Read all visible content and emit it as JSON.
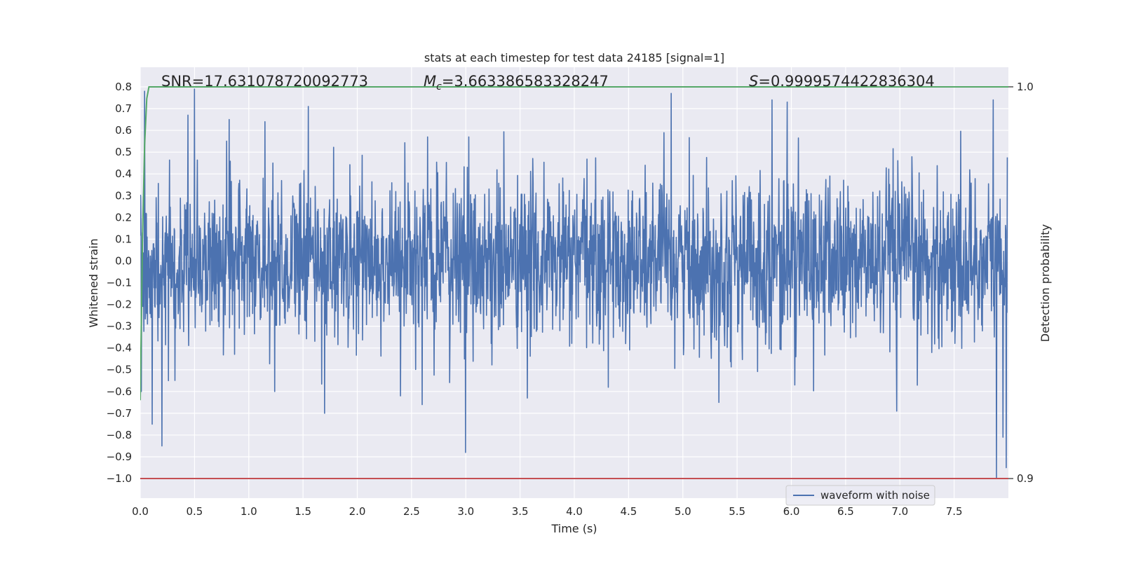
{
  "chart_data": {
    "type": "line",
    "title": "stats at each timestep for test data 24185 [signal=1]",
    "xlabel": "Time (s)",
    "ylabel": "Whitened strain",
    "y2label": "Detection probability",
    "xlim": [
      0.0,
      8.0
    ],
    "ylim": [
      -1.09,
      0.89
    ],
    "y2lim": [
      0.9,
      1.0
    ],
    "x_ticks": [
      0.0,
      0.5,
      1.0,
      1.5,
      2.0,
      2.5,
      3.0,
      3.5,
      4.0,
      4.5,
      5.0,
      5.5,
      6.0,
      6.5,
      7.0,
      7.5
    ],
    "x_tick_labels": [
      "0.0",
      "0.5",
      "1.0",
      "1.5",
      "2.0",
      "2.5",
      "3.0",
      "3.5",
      "4.0",
      "4.5",
      "5.0",
      "5.5",
      "6.0",
      "6.5",
      "7.0",
      "7.5"
    ],
    "y_ticks": [
      0.8,
      0.7,
      0.6,
      0.5,
      0.4,
      0.3,
      0.2,
      0.1,
      0.0,
      -0.1,
      -0.2,
      -0.3,
      -0.4,
      -0.5,
      -0.6,
      -0.7,
      -0.8,
      -0.9,
      -1.0
    ],
    "y_tick_labels": [
      "0.8",
      "0.7",
      "0.6",
      "0.5",
      "0.4",
      "0.3",
      "0.2",
      "0.1",
      "0.0",
      "−0.1",
      "−0.2",
      "−0.3",
      "−0.4",
      "−0.5",
      "−0.6",
      "−0.7",
      "−0.8",
      "−0.9",
      "−1.0"
    ],
    "y2_ticks": [
      1.0,
      0.9
    ],
    "y2_tick_labels": [
      "1.0",
      "0.9"
    ],
    "grid": true,
    "legend": {
      "placement": "bottom-right",
      "entries": [
        "waveform with noise"
      ]
    },
    "annotations": {
      "snr": "SNR=17.631078720092773",
      "mc_symbol": "M",
      "mc_sub": "c",
      "mc_value": "=3.663386583328247",
      "s_symbol": "S",
      "s_value": "=0.9999574422836304"
    },
    "series": [
      {
        "name": "waveform with noise",
        "color": "#4c72b0",
        "noise_std": 0.19,
        "sample_count": 2400,
        "peaks": [
          {
            "x": 0.01,
            "y": -0.6
          },
          {
            "x": 0.04,
            "y": 0.78
          },
          {
            "x": 0.11,
            "y": -0.75
          },
          {
            "x": 0.2,
            "y": -0.85
          },
          {
            "x": 0.26,
            "y": -0.55
          },
          {
            "x": 0.44,
            "y": 0.67
          },
          {
            "x": 0.5,
            "y": 0.79
          },
          {
            "x": 0.82,
            "y": 0.65
          },
          {
            "x": 1.15,
            "y": 0.64
          },
          {
            "x": 1.24,
            "y": -0.6
          },
          {
            "x": 1.55,
            "y": 0.71
          },
          {
            "x": 1.7,
            "y": -0.7
          },
          {
            "x": 2.4,
            "y": -0.62
          },
          {
            "x": 2.6,
            "y": -0.66
          },
          {
            "x": 2.65,
            "y": 0.57
          },
          {
            "x": 3.0,
            "y": -0.88
          },
          {
            "x": 3.03,
            "y": 0.57
          },
          {
            "x": 3.57,
            "y": -0.63
          },
          {
            "x": 4.9,
            "y": 0.77
          },
          {
            "x": 5.34,
            "y": -0.65
          },
          {
            "x": 5.83,
            "y": 0.74
          },
          {
            "x": 5.97,
            "y": 0.73
          },
          {
            "x": 6.04,
            "y": -0.57
          },
          {
            "x": 6.98,
            "y": -0.69
          },
          {
            "x": 7.87,
            "y": 0.74
          },
          {
            "x": 7.9,
            "y": -1.0
          },
          {
            "x": 7.96,
            "y": -0.81
          },
          {
            "x": 7.99,
            "y": -0.95
          }
        ]
      },
      {
        "name": "",
        "axis": "right",
        "color": "#55a868",
        "x": [
          0.0,
          0.02,
          0.04,
          0.06,
          0.08,
          0.1,
          2.0,
          4.0,
          6.0,
          8.0
        ],
        "y": [
          0.92,
          0.96,
          0.985,
          0.997,
          1.0,
          1.0,
          1.0,
          1.0,
          1.0,
          1.0
        ]
      },
      {
        "name": "",
        "axis": "left",
        "color": "#c44e52",
        "x": [
          0.0,
          8.0
        ],
        "y": [
          -1.0,
          -1.0
        ]
      }
    ]
  }
}
